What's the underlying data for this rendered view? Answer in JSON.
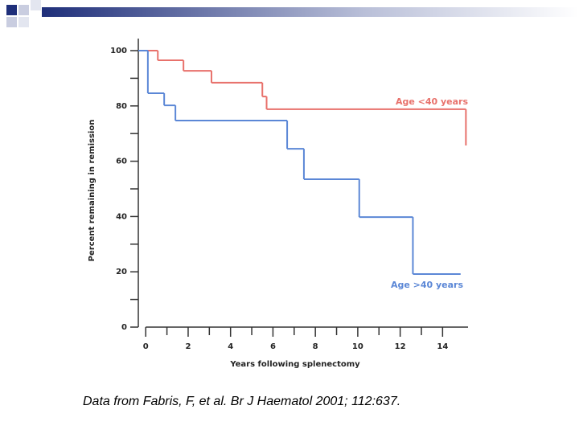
{
  "chart_data": {
    "type": "line",
    "step": "post",
    "y_label": "Percent remaining in remission",
    "x_label": "Years following splenectomy",
    "caption": "Data from Fabris, F, et al. Br J Haematol 2001; 112:637.",
    "xlim": [
      -0.35,
      15.2
    ],
    "xticks": [
      0,
      2,
      4,
      6,
      8,
      10,
      12,
      14
    ],
    "xminorticks": [
      1,
      3,
      5,
      7,
      9,
      11,
      13
    ],
    "ylim": [
      0,
      100
    ],
    "yticks": [
      0,
      20,
      40,
      60,
      80,
      100
    ],
    "yminorticks": [
      10,
      30,
      50,
      70,
      90
    ],
    "series": [
      {
        "name": "Age <40 years",
        "color": "#e8716b",
        "x": [
          -0.35,
          0.57,
          1.78,
          3.1,
          5.5,
          5.7,
          15.1
        ],
        "values": [
          100,
          96.5,
          92.7,
          88.4,
          83.4,
          78.8,
          65.7
        ]
      },
      {
        "name": "Age >40 years",
        "color": "#5b87d6",
        "x": [
          -0.35,
          0.1,
          0.87,
          1.4,
          6.67,
          7.46,
          10.07,
          12.6,
          14.85
        ],
        "values": [
          100,
          84.6,
          80.2,
          74.7,
          64.5,
          53.5,
          39.8,
          19.2,
          19.2
        ]
      }
    ]
  }
}
